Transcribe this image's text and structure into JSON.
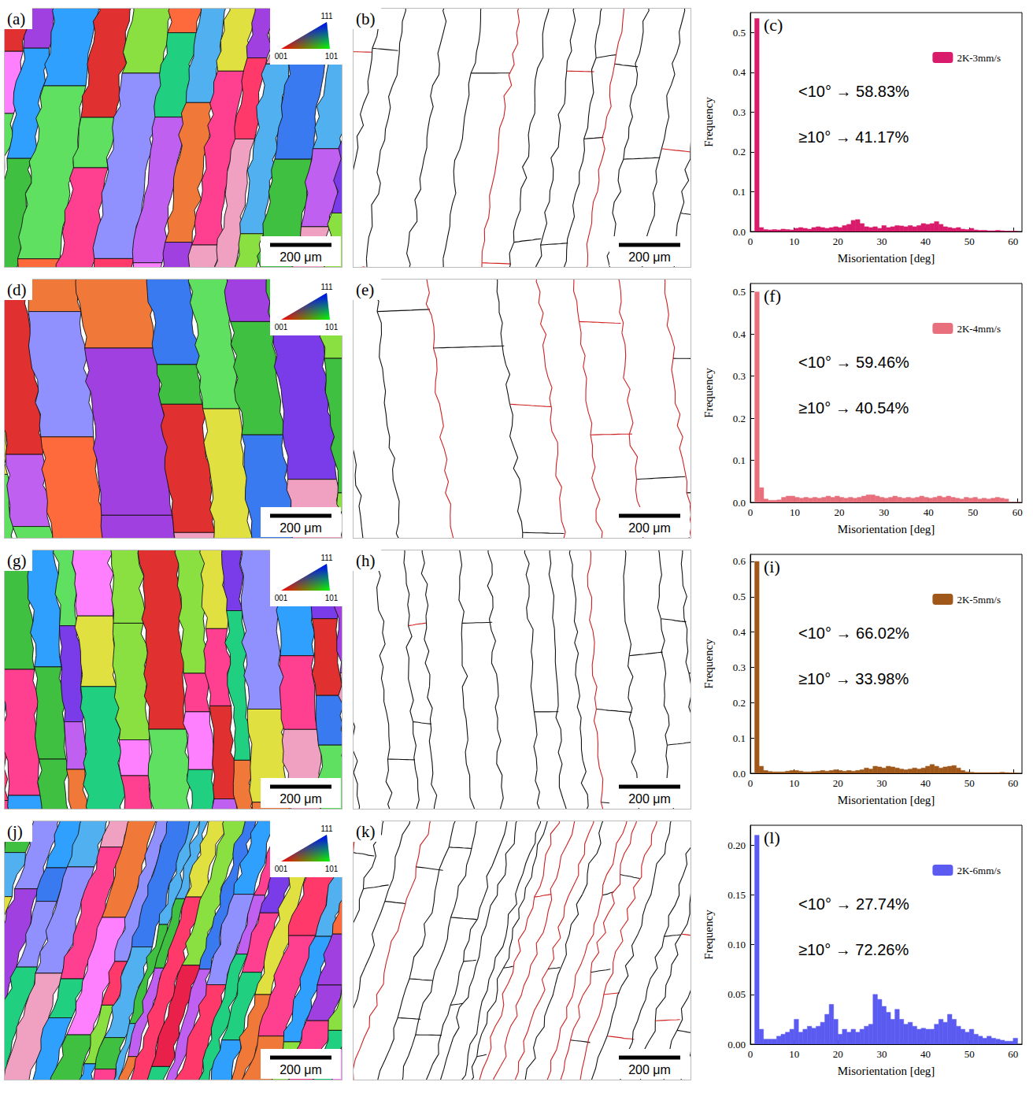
{
  "maps": [
    {
      "panel": "(a)",
      "type": "orientation",
      "key_labels": {
        "top": "111",
        "left": "001",
        "right": "101"
      },
      "scale_bar": "200 μm"
    },
    {
      "panel": "(b)",
      "type": "boundary",
      "scale_bar": "200 μm"
    },
    {
      "panel": "(d)",
      "type": "orientation",
      "key_labels": {
        "top": "111",
        "left": "001",
        "right": "101"
      },
      "scale_bar": "200 μm"
    },
    {
      "panel": "(e)",
      "type": "boundary",
      "scale_bar": "200 μm"
    },
    {
      "panel": "(g)",
      "type": "orientation",
      "key_labels": {
        "top": "111",
        "left": "001",
        "right": "101"
      },
      "scale_bar": "200 μm"
    },
    {
      "panel": "(h)",
      "type": "boundary",
      "scale_bar": "200 μm"
    },
    {
      "panel": "(j)",
      "type": "orientation",
      "key_labels": {
        "top": "111",
        "left": "001",
        "right": "101"
      },
      "scale_bar": "200 μm"
    },
    {
      "panel": "(k)",
      "type": "boundary",
      "scale_bar": "200 μm"
    }
  ],
  "chart_data": [
    {
      "type": "histogram",
      "panel": "(c)",
      "xlabel": "Misorientation [deg]",
      "ylabel": "Frequency",
      "bins": [
        1,
        2,
        3,
        4,
        5,
        6,
        7,
        8,
        9,
        10,
        11,
        12,
        13,
        14,
        15,
        16,
        17,
        18,
        19,
        20,
        21,
        22,
        23,
        24,
        25,
        26,
        27,
        28,
        29,
        30,
        31,
        32,
        33,
        34,
        35,
        36,
        37,
        38,
        39,
        40,
        41,
        42,
        43,
        44,
        45,
        46,
        47,
        48,
        49,
        50,
        51,
        52,
        53,
        54,
        55,
        56,
        57,
        58,
        59,
        60,
        61
      ],
      "series": [
        {
          "name": "2K-3mm/s",
          "color": "#d81b6a",
          "values": [
            0.535,
            0.01,
            0.005,
            0.004,
            0.005,
            0.004,
            0.006,
            0.005,
            0.004,
            0.008,
            0.01,
            0.008,
            0.006,
            0.01,
            0.012,
            0.01,
            0.008,
            0.01,
            0.012,
            0.01,
            0.015,
            0.018,
            0.028,
            0.03,
            0.02,
            0.012,
            0.01,
            0.012,
            0.008,
            0.015,
            0.01,
            0.012,
            0.015,
            0.014,
            0.012,
            0.015,
            0.012,
            0.015,
            0.02,
            0.018,
            0.02,
            0.025,
            0.018,
            0.012,
            0.01,
            0.008,
            0.01,
            0.006,
            0.005,
            0.008,
            0.004,
            0.003,
            0.003,
            0.002,
            0.002,
            0.003,
            0.002,
            0.001,
            0.001,
            0.001
          ]
        }
      ],
      "xlim": [
        0,
        62
      ],
      "xticks": [
        0,
        10,
        20,
        30,
        40,
        50,
        60
      ],
      "ylim": [
        0,
        0.55
      ],
      "yticks": [
        {
          "value": 0,
          "label": "0.0"
        },
        {
          "value": 0.1,
          "label": "0.1"
        },
        {
          "value": 0.2,
          "label": "0.2"
        },
        {
          "value": 0.3,
          "label": "0.3"
        },
        {
          "value": 0.4,
          "label": "0.4"
        },
        {
          "value": 0.5,
          "label": "0.5"
        }
      ],
      "annotations": [
        "<10° → 58.83%",
        "≥10° → 41.17%"
      ],
      "legend": "upper right",
      "grid": false
    },
    {
      "type": "histogram",
      "panel": "(f)",
      "xlabel": "Misorientation [deg]",
      "ylabel": "Frequency",
      "bins": [
        1,
        2,
        3,
        4,
        5,
        6,
        7,
        8,
        9,
        10,
        11,
        12,
        13,
        14,
        15,
        16,
        17,
        18,
        19,
        20,
        21,
        22,
        23,
        24,
        25,
        26,
        27,
        28,
        29,
        30,
        31,
        32,
        33,
        34,
        35,
        36,
        37,
        38,
        39,
        40,
        41,
        42,
        43,
        44,
        45,
        46,
        47,
        48,
        49,
        50,
        51,
        52,
        53,
        54,
        55,
        56,
        57,
        58,
        59,
        60,
        61
      ],
      "series": [
        {
          "name": "2K-4mm/s",
          "color": "#e8707c",
          "values": [
            0.5,
            0.035,
            0.008,
            0.005,
            0.005,
            0.006,
            0.012,
            0.015,
            0.015,
            0.012,
            0.01,
            0.012,
            0.01,
            0.012,
            0.01,
            0.012,
            0.015,
            0.012,
            0.015,
            0.012,
            0.01,
            0.012,
            0.01,
            0.012,
            0.015,
            0.018,
            0.018,
            0.015,
            0.012,
            0.01,
            0.012,
            0.015,
            0.012,
            0.01,
            0.012,
            0.01,
            0.012,
            0.015,
            0.012,
            0.01,
            0.012,
            0.015,
            0.012,
            0.015,
            0.012,
            0.01,
            0.008,
            0.012,
            0.01,
            0.012,
            0.008,
            0.01,
            0.008,
            0.01,
            0.012,
            0.01,
            0.008,
            0,
            0,
            0
          ]
        }
      ],
      "xlim": [
        0,
        61
      ],
      "xticks": [
        0,
        10,
        20,
        30,
        40,
        50,
        60
      ],
      "ylim": [
        0,
        0.52
      ],
      "yticks": [
        {
          "value": 0,
          "label": "0.0"
        },
        {
          "value": 0.1,
          "label": "0.1"
        },
        {
          "value": 0.2,
          "label": "0.2"
        },
        {
          "value": 0.3,
          "label": "0.3"
        },
        {
          "value": 0.4,
          "label": "0.4"
        },
        {
          "value": 0.5,
          "label": "0.5"
        }
      ],
      "annotations": [
        "<10° → 59.46%",
        "≥10° → 40.54%"
      ],
      "legend": "upper right",
      "grid": false
    },
    {
      "type": "histogram",
      "panel": "(i)",
      "xlabel": "Misorientation [deg]",
      "ylabel": "Frequency",
      "bins": [
        1,
        2,
        3,
        4,
        5,
        6,
        7,
        8,
        9,
        10,
        11,
        12,
        13,
        14,
        15,
        16,
        17,
        18,
        19,
        20,
        21,
        22,
        23,
        24,
        25,
        26,
        27,
        28,
        29,
        30,
        31,
        32,
        33,
        34,
        35,
        36,
        37,
        38,
        39,
        40,
        41,
        42,
        43,
        44,
        45,
        46,
        47,
        48,
        49,
        50,
        51,
        52,
        53,
        54,
        55,
        56,
        57,
        58,
        59,
        60,
        61
      ],
      "series": [
        {
          "name": "2K-5mm/s",
          "color": "#a0581a",
          "values": [
            0.6,
            0.02,
            0.008,
            0.005,
            0.004,
            0.004,
            0.004,
            0.006,
            0.008,
            0.008,
            0.006,
            0.004,
            0.004,
            0.005,
            0.006,
            0.008,
            0.006,
            0.008,
            0.01,
            0.008,
            0.006,
            0.008,
            0.006,
            0.008,
            0.01,
            0.015,
            0.012,
            0.02,
            0.018,
            0.015,
            0.02,
            0.018,
            0.015,
            0.012,
            0.01,
            0.012,
            0.015,
            0.012,
            0.015,
            0.02,
            0.025,
            0.02,
            0.015,
            0.018,
            0.02,
            0.022,
            0.015,
            0.008,
            0.004,
            0.003,
            0.002,
            0.002,
            0.002,
            0.002,
            0.002,
            0.002,
            0.003,
            0.002,
            0.001,
            0.001
          ]
        }
      ],
      "xlim": [
        0,
        62
      ],
      "xticks": [
        0,
        10,
        20,
        30,
        40,
        50,
        60
      ],
      "ylim": [
        0,
        0.62
      ],
      "yticks": [
        {
          "value": 0,
          "label": "0.0"
        },
        {
          "value": 0.1,
          "label": "0.1"
        },
        {
          "value": 0.2,
          "label": "0.2"
        },
        {
          "value": 0.3,
          "label": "0.3"
        },
        {
          "value": 0.4,
          "label": "0.4"
        },
        {
          "value": 0.5,
          "label": "0.5"
        },
        {
          "value": 0.6,
          "label": "0.6"
        }
      ],
      "annotations": [
        "<10° → 66.02%",
        "≥10° → 33.98%"
      ],
      "legend": "upper right",
      "grid": false
    },
    {
      "type": "histogram",
      "panel": "(l)",
      "xlabel": "Misorientation [deg]",
      "ylabel": "Frequency",
      "bins": [
        1,
        2,
        3,
        4,
        5,
        6,
        7,
        8,
        9,
        10,
        11,
        12,
        13,
        14,
        15,
        16,
        17,
        18,
        19,
        20,
        21,
        22,
        23,
        24,
        25,
        26,
        27,
        28,
        29,
        30,
        31,
        32,
        33,
        34,
        35,
        36,
        37,
        38,
        39,
        40,
        41,
        42,
        43,
        44,
        45,
        46,
        47,
        48,
        49,
        50,
        51,
        52,
        53,
        54,
        55,
        56,
        57,
        58,
        59,
        60,
        61
      ],
      "series": [
        {
          "name": "2K-6mm/s",
          "color": "#5b5bf2",
          "values": [
            0.21,
            0.015,
            0.005,
            0.005,
            0.005,
            0.008,
            0.01,
            0.012,
            0.015,
            0.025,
            0.012,
            0.015,
            0.018,
            0.016,
            0.018,
            0.022,
            0.03,
            0.04,
            0.025,
            0.01,
            0.015,
            0.012,
            0.015,
            0.012,
            0.015,
            0.018,
            0.02,
            0.05,
            0.045,
            0.038,
            0.032,
            0.025,
            0.035,
            0.025,
            0.02,
            0.022,
            0.018,
            0.015,
            0.016,
            0.015,
            0.015,
            0.02,
            0.025,
            0.022,
            0.03,
            0.025,
            0.018,
            0.015,
            0.012,
            0.015,
            0.01,
            0.008,
            0.006,
            0.008,
            0.006,
            0.005,
            0.004,
            0.003,
            0.003,
            0.006
          ]
        }
      ],
      "xlim": [
        0,
        62
      ],
      "xticks": [
        0,
        10,
        20,
        30,
        40,
        50,
        60
      ],
      "ylim": [
        0,
        0.22
      ],
      "yticks": [
        {
          "value": 0,
          "label": "0.00"
        },
        {
          "value": 0.05,
          "label": "0.05"
        },
        {
          "value": 0.1,
          "label": "0.10"
        },
        {
          "value": 0.15,
          "label": "0.15"
        },
        {
          "value": 0.2,
          "label": "0.20"
        }
      ],
      "annotations": [
        "<10° → 27.74%",
        "≥10° → 72.26%"
      ],
      "legend": "upper right",
      "grid": false
    }
  ]
}
